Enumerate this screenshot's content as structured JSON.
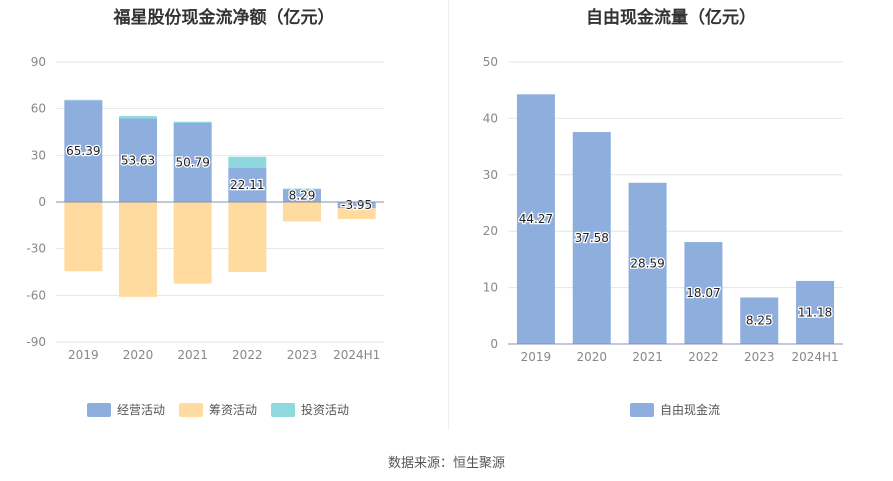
{
  "source_text": "数据来源：恒生聚源",
  "colors": {
    "operating": "#8eaedd",
    "financing": "#ffdba0",
    "investing": "#8ed8de",
    "fcf": "#8eaedd",
    "grid": "#e6e6e6",
    "axis_text": "#888888"
  },
  "chart_data": [
    {
      "type": "bar",
      "title": "福星股份现金流净额（亿元）",
      "categories": [
        "2019",
        "2020",
        "2021",
        "2022",
        "2023",
        "2024H1"
      ],
      "ylim": [
        -90,
        90
      ],
      "yticks": [
        90,
        60,
        30,
        0,
        -30,
        -60,
        -90
      ],
      "series": [
        {
          "name": "经营活动",
          "values": [
            65.39,
            53.63,
            50.79,
            22.11,
            8.29,
            -3.95
          ]
        },
        {
          "name": "筹资活动",
          "values": [
            -44.5,
            -61.0,
            -52.5,
            -45.0,
            -12.5,
            -7.0
          ]
        },
        {
          "name": "投资活动",
          "values": [
            0.3,
            1.6,
            0.8,
            7.0,
            0.3,
            0.3
          ]
        }
      ],
      "data_labels": [
        "65.39",
        "53.63",
        "50.79",
        "22.11",
        "8.29",
        "-3.95"
      ],
      "legend_position": "bottom-center"
    },
    {
      "type": "bar",
      "title": "自由现金流量（亿元）",
      "categories": [
        "2019",
        "2020",
        "2021",
        "2022",
        "2023",
        "2024H1"
      ],
      "ylim": [
        0,
        50
      ],
      "yticks": [
        50,
        40,
        30,
        20,
        10,
        0
      ],
      "series": [
        {
          "name": "自由现金流",
          "values": [
            44.27,
            37.58,
            28.59,
            18.07,
            8.25,
            11.18
          ]
        }
      ],
      "data_labels": [
        "44.27",
        "37.58",
        "28.59",
        "18.07",
        "8.25",
        "11.18"
      ],
      "legend_position": "bottom-center"
    }
  ]
}
